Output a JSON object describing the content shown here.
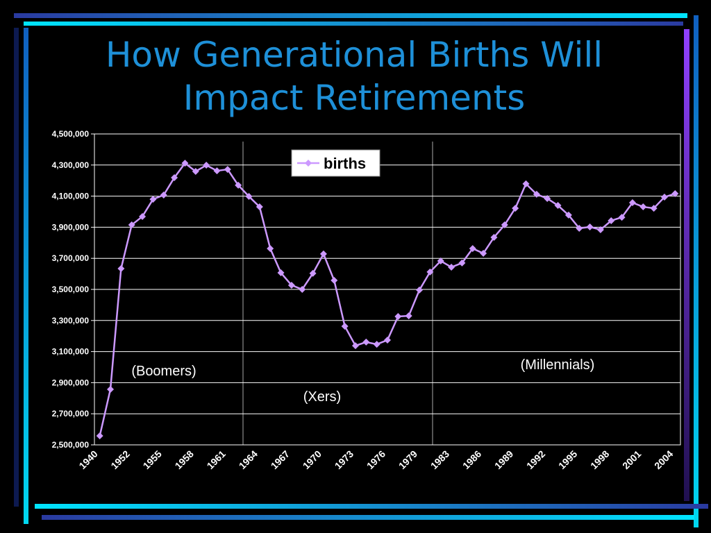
{
  "chart_data": {
    "type": "line",
    "title": [
      "How Generational Births Will",
      "Impact Retirements"
    ],
    "categories": [
      "1940",
      null,
      null,
      "1952",
      null,
      null,
      "1955",
      null,
      null,
      "1958",
      null,
      null,
      "1961",
      null,
      null,
      "1964",
      null,
      null,
      "1967",
      null,
      null,
      "1970",
      null,
      null,
      "1973",
      null,
      null,
      "1976",
      null,
      null,
      "1979",
      null,
      null,
      "1983",
      null,
      null,
      "1986",
      null,
      null,
      "1989",
      null,
      null,
      "1992",
      null,
      null,
      "1995",
      null,
      null,
      "1998",
      null,
      null,
      "2001",
      null,
      null,
      "2004"
    ],
    "series": [
      {
        "name": "births",
        "color": "#cc99ff",
        "values": [
          2558000,
          2857000,
          3634000,
          3915000,
          3969000,
          4080000,
          4107000,
          4219000,
          4312000,
          4259000,
          4299000,
          4263000,
          4272000,
          4170000,
          4098000,
          4031000,
          3763000,
          3607000,
          3527000,
          3500000,
          3603000,
          3728000,
          3558000,
          3263000,
          3138000,
          3161000,
          3147000,
          3174000,
          3326000,
          3330000,
          3496000,
          3612000,
          3683000,
          3643000,
          3670000,
          3763000,
          3732000,
          3835000,
          3915000,
          4022000,
          4179000,
          4112000,
          4085000,
          4040000,
          3978000,
          3893000,
          3902000,
          3884000,
          3942000,
          3964000,
          4058000,
          4031000,
          4022000,
          4094000,
          4116000
        ]
      }
    ],
    "ylim": [
      2500000,
      4500000
    ],
    "yticks": [
      {
        "value": 2500000,
        "label": "2,500,000"
      },
      {
        "value": 2700000,
        "label": "2,700,000"
      },
      {
        "value": 2900000,
        "label": "2,900,000"
      },
      {
        "value": 3100000,
        "label": "3,100,000"
      },
      {
        "value": 3300000,
        "label": "3,300,000"
      },
      {
        "value": 3500000,
        "label": "3,500,000"
      },
      {
        "value": 3700000,
        "label": "3,700,000"
      },
      {
        "value": 3900000,
        "label": "3,900,000"
      },
      {
        "value": 4100000,
        "label": "4,100,000"
      },
      {
        "value": 4300000,
        "label": "4,300,000"
      },
      {
        "value": 4500000,
        "label": "4,500,000"
      }
    ],
    "grid": true,
    "legend": "top",
    "annotations": [
      "(Boomers)",
      "(Xers)",
      "(Millennials)"
    ]
  }
}
